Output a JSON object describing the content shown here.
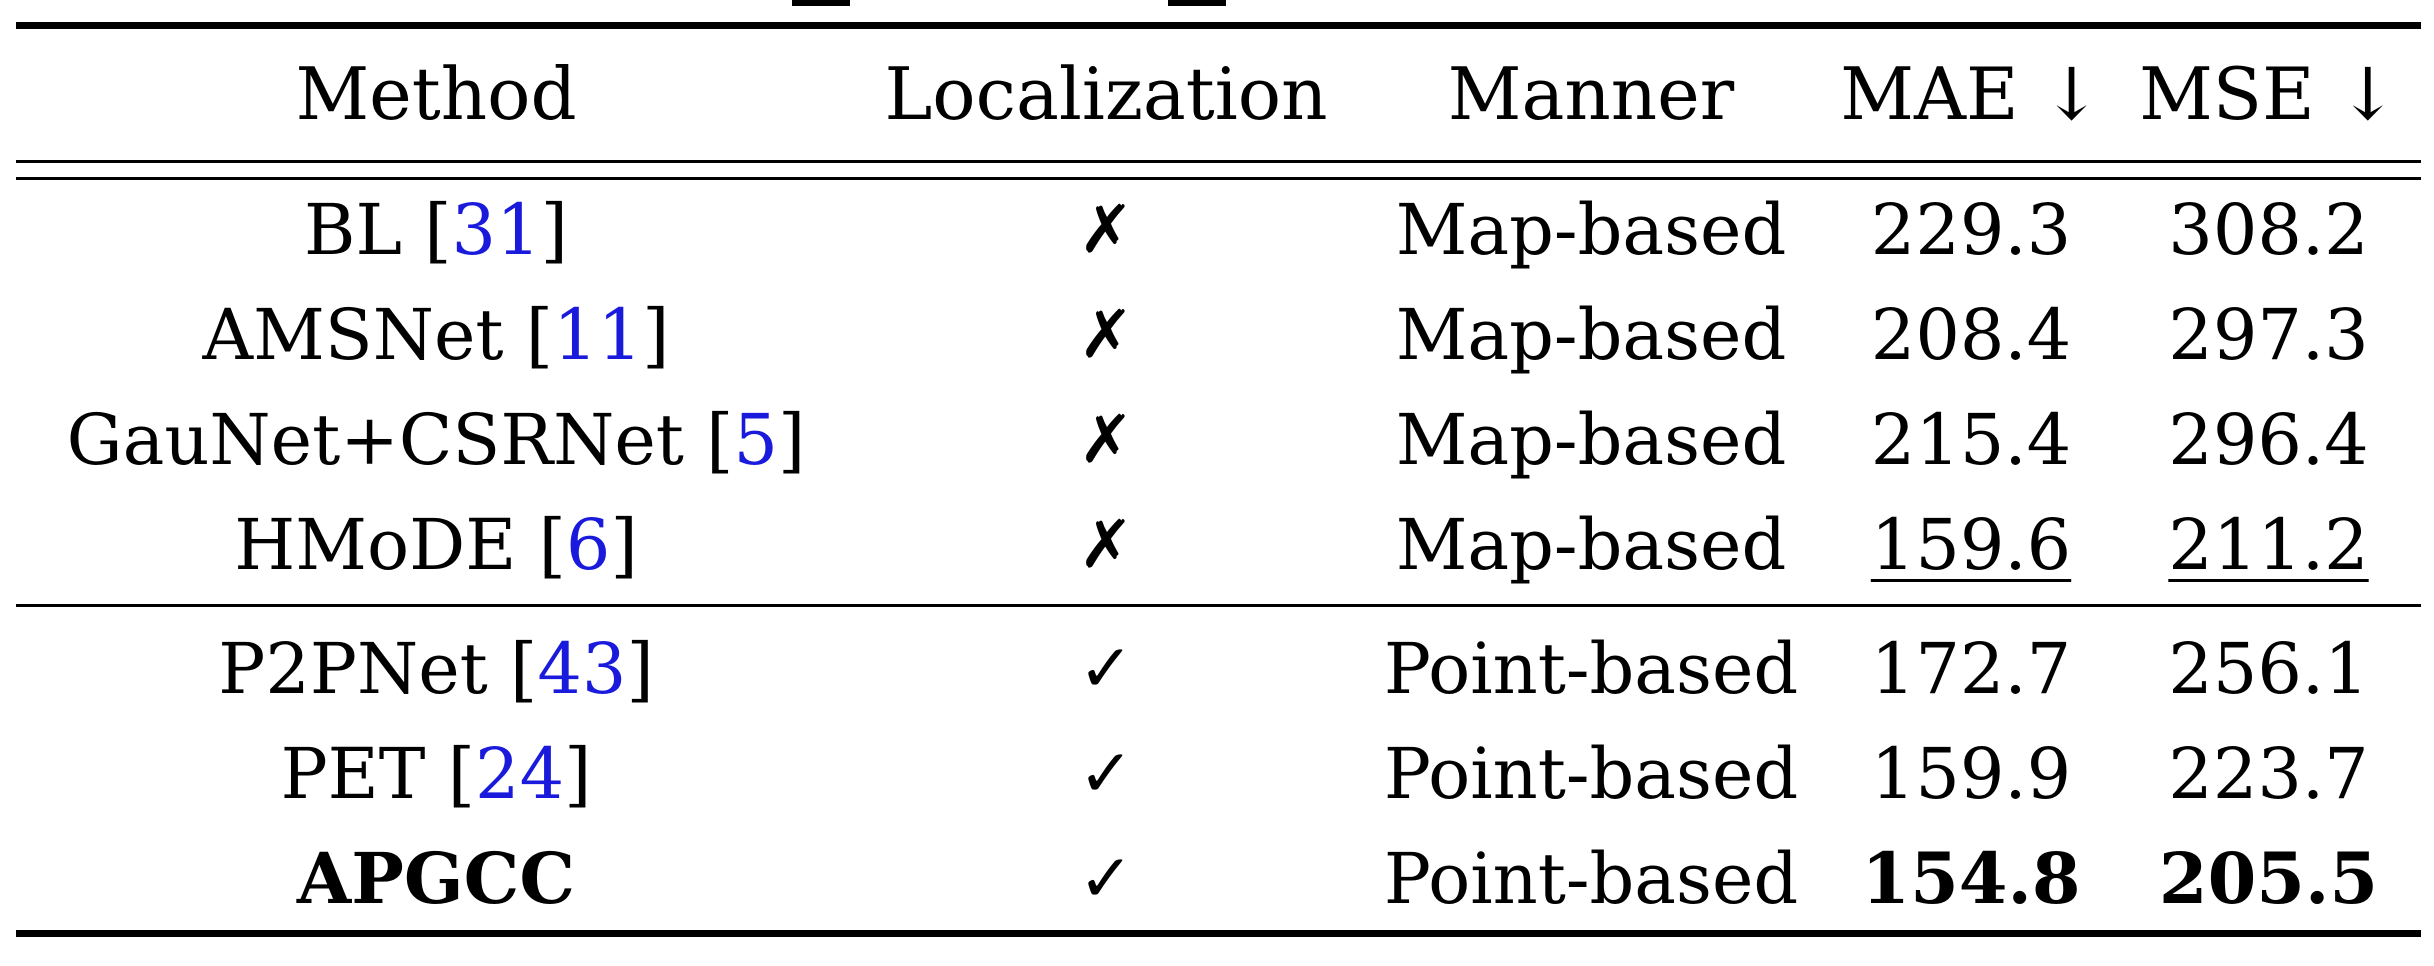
{
  "table": {
    "headers": {
      "method": "Method",
      "localization": "Localization",
      "manner": "Manner",
      "mae": "MAE ↓",
      "mse": "MSE ↓"
    },
    "rows": [
      {
        "method": "BL",
        "cite": "31",
        "localization": "✗",
        "manner": "Map-based",
        "mae": "229.3",
        "mse": "308.2"
      },
      {
        "method": "AMSNet",
        "cite": "11",
        "localization": "✗",
        "manner": "Map-based",
        "mae": "208.4",
        "mse": "297.3"
      },
      {
        "method": "GauNet+CSRNet",
        "cite": "5",
        "localization": "✗",
        "manner": "Map-based",
        "mae": "215.4",
        "mse": "296.4"
      },
      {
        "method": "HMoDE",
        "cite": "6",
        "localization": "✗",
        "manner": "Map-based",
        "mae": "159.6",
        "mse": "211.2"
      },
      {
        "method": "P2PNet",
        "cite": "43",
        "localization": "✓",
        "manner": "Point-based",
        "mae": "172.7",
        "mse": "256.1"
      },
      {
        "method": "PET",
        "cite": "24",
        "localization": "✓",
        "manner": "Point-based",
        "mae": "159.9",
        "mse": "223.7"
      },
      {
        "method": "APGCC",
        "localization": "✓",
        "manner": "Point-based",
        "mae": "154.8",
        "mse": "205.5"
      }
    ],
    "colors": {
      "citation": "#1a1adc",
      "text": "#000000"
    }
  }
}
